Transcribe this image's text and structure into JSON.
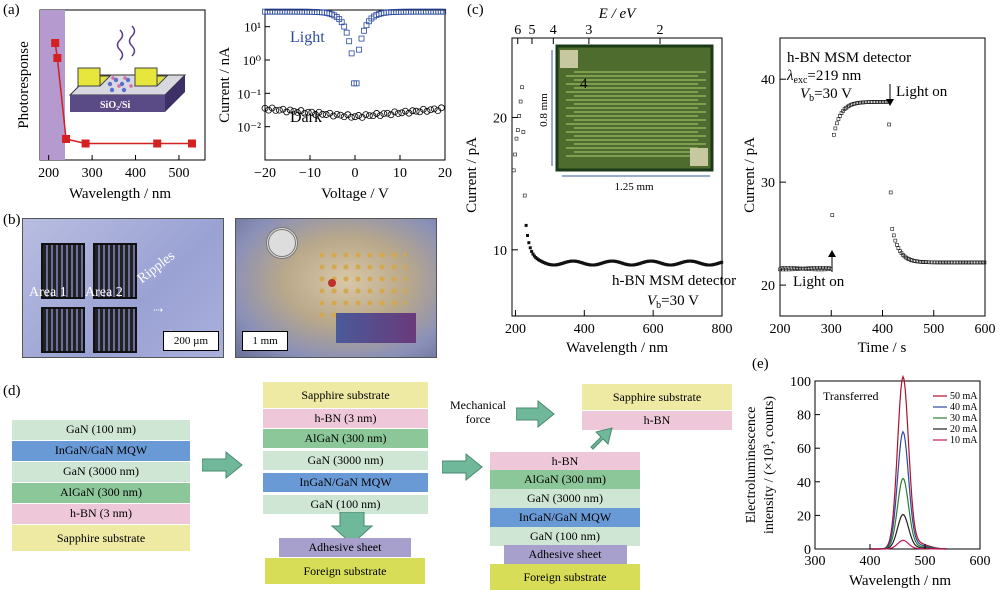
{
  "panel_labels": {
    "a": "(a)",
    "b": "(b)",
    "c": "(c)",
    "d": "(d)",
    "e": "(e)"
  },
  "a_left": {
    "ylabel": "Photoresponse",
    "xlabel": "Wavelength / nm",
    "xticks": [
      "200",
      "300",
      "400",
      "500"
    ],
    "device_label": "SiO₂/Si",
    "points": [
      [
        215,
        0.78
      ],
      [
        220,
        0.68
      ],
      [
        240,
        0.14
      ],
      [
        285,
        0.11
      ],
      [
        450,
        0.11
      ],
      [
        530,
        0.11
      ]
    ]
  },
  "a_right": {
    "ylabel": "Current / nA",
    "xlabel": "Voltage / V",
    "xticks": [
      "−20",
      "−10",
      "0",
      "10",
      "20"
    ],
    "yticks": [
      "10¹",
      "10⁰",
      "10⁻¹",
      "10⁻²"
    ],
    "light_label": "Light",
    "dark_label": "Dark"
  },
  "b": {
    "area1": "Area 1",
    "area2": "Area 2",
    "ripples": "Ripples",
    "scale1": "200 µm",
    "scale2": "1 mm"
  },
  "c_left": {
    "ylabel": "Current / pA",
    "xlabel": "Wavelength / nm",
    "top_label": "E / eV",
    "top_ticks": [
      "6",
      "5",
      "4",
      "3",
      "2"
    ],
    "xticks": [
      "200",
      "400",
      "600",
      "800"
    ],
    "yticks": [
      "10",
      "20"
    ],
    "inset_dim1": "0.8 mm",
    "inset_dim2": "1.25 mm",
    "inset_num": "4",
    "title": "h-BN MSM detector",
    "vb": "V",
    "vb_sub": "b",
    "vb_val": "=30 V"
  },
  "c_right": {
    "ylabel": "Current / pA",
    "xlabel": "Time / s",
    "xticks": [
      "200",
      "300",
      "400",
      "500",
      "600"
    ],
    "yticks": [
      "20",
      "30",
      "40"
    ],
    "title": "h-BN MSM detector",
    "lambda": "λ",
    "lambda_sub": "exc",
    "lambda_val": "=219 nm",
    "vb": "V",
    "vb_sub": "b",
    "vb_val": "=30 V",
    "light_on_1": "Light on",
    "light_on_2": "Light on"
  },
  "d": {
    "stack1": [
      "GaN (100 nm)",
      "InGaN/GaN MQW",
      "GaN (3000 nm)",
      "AlGaN (300 nm)",
      "h-BN (3 nm)",
      "Sapphire substrate"
    ],
    "stack2": [
      "Sapphire substrate",
      "h-BN (3 nm)",
      "AlGaN (300 nm)",
      "GaN (3000 nm)",
      "InGaN/GaN MQW",
      "GaN (100 nm)"
    ],
    "stack2_bottom": [
      "Adhesive sheet",
      "Foreign substrate"
    ],
    "stack3_top": [
      "Sapphire substrate",
      "h-BN"
    ],
    "stack3": [
      "h-BN",
      "AlGaN (300 nm)",
      "GaN (3000 nm)",
      "InGaN/GaN MQW",
      "GaN (100 nm)",
      "Adhesive sheet",
      "Foreign substrate"
    ],
    "mech1": "Mechanical",
    "mech2": "force"
  },
  "e": {
    "ylabel1": "Electroluminescence",
    "ylabel2": "intensity / (×10³, counts)",
    "xlabel": "Wavelength / nm",
    "xticks": [
      "300",
      "400",
      "500",
      "600"
    ],
    "yticks": [
      "0",
      "20",
      "40",
      "60",
      "80",
      "100"
    ],
    "tag": "Transferred"
  },
  "chart_data": [
    {
      "type": "line",
      "title": "",
      "xlabel": "Wavelength / nm",
      "ylabel": "Electroluminescence intensity / (×10³, counts)",
      "xlim": [
        300,
        600
      ],
      "ylim": [
        0,
        100
      ],
      "legend": "top-right",
      "series": [
        {
          "name": "50 mA",
          "color": "#b0102a",
          "peak": 100
        },
        {
          "name": "40 mA",
          "color": "#2b4aa0",
          "peak": 68
        },
        {
          "name": "30 mA",
          "color": "#2e7d32",
          "peak": 41
        },
        {
          "name": "20 mA",
          "color": "#222222",
          "peak": 20
        },
        {
          "name": "10 mA",
          "color": "#c2185b",
          "peak": 5
        }
      ],
      "peak_x": 460
    }
  ]
}
